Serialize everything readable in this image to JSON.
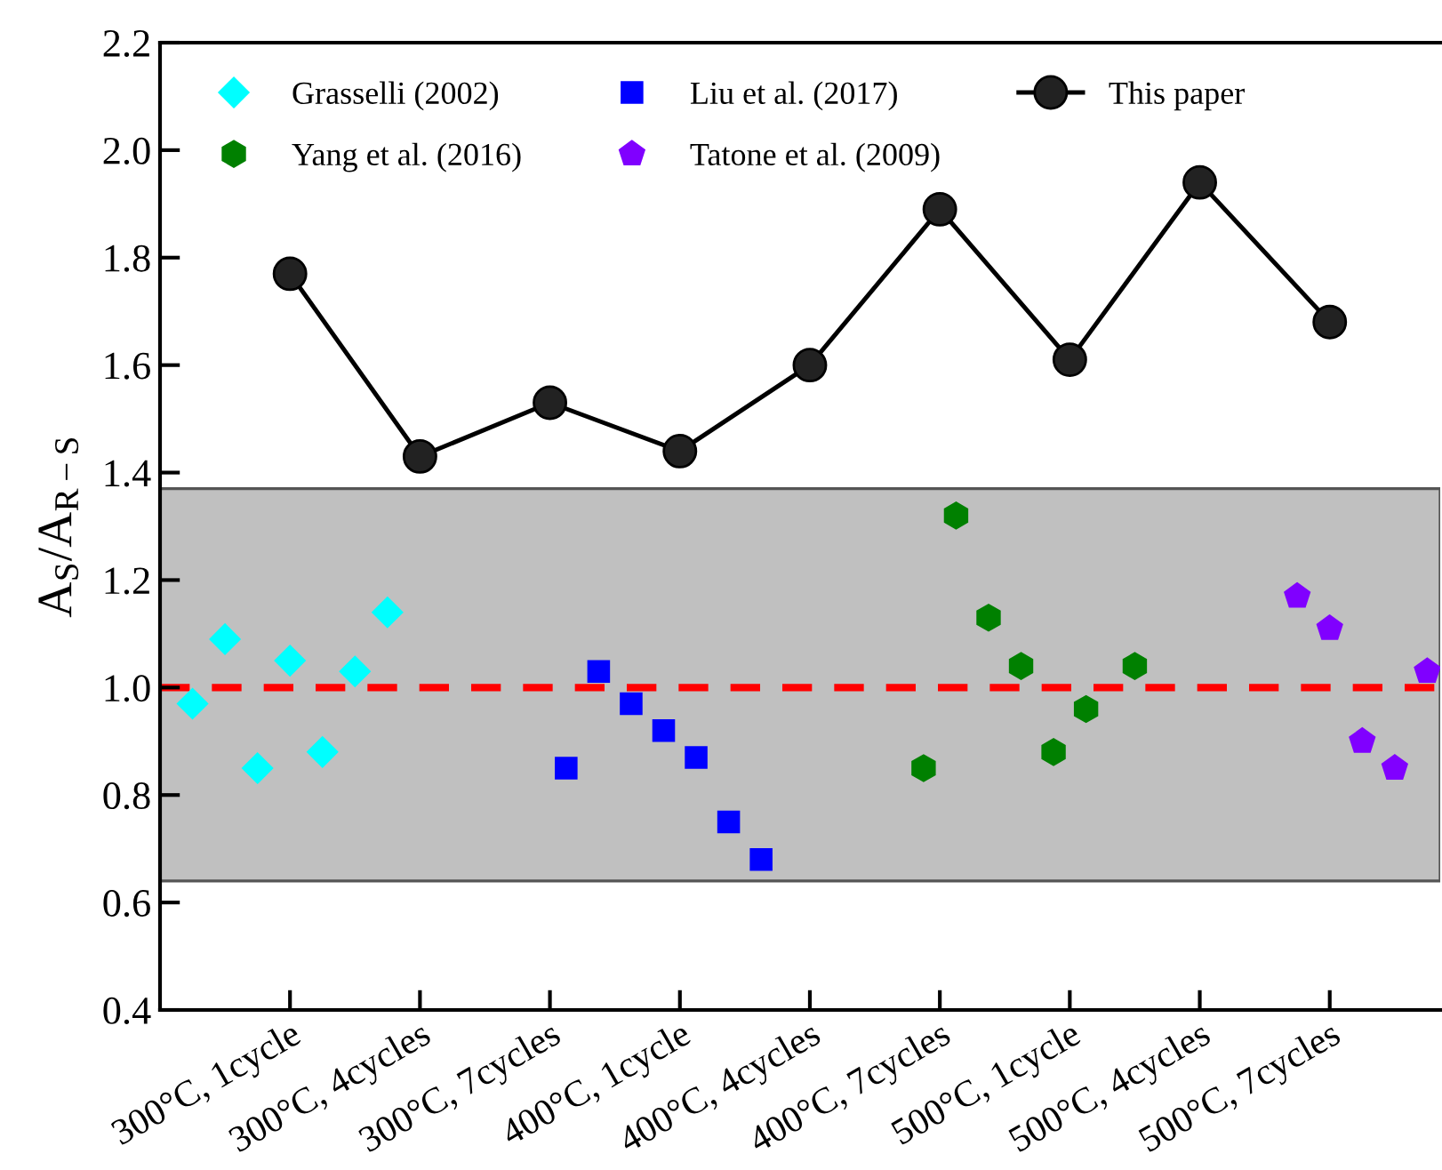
{
  "chart_data": {
    "type": "scatter",
    "ylabel": "A$_{S}$/A$_{R−S}$",
    "categories": [
      null,
      null,
      null,
      null,
      null,
      null,
      null,
      null,
      "300°C, 1cycle",
      null,
      null,
      null,
      null,
      null,
      null,
      null,
      "300°C, 4cycles",
      null,
      null,
      null,
      null,
      null,
      null,
      null,
      "300°C, 7cycles",
      null,
      null,
      null,
      null,
      null,
      null,
      null,
      "400°C, 1cycle",
      null,
      null,
      null,
      null,
      null,
      null,
      null,
      "400°C, 4cycles",
      null,
      null,
      null,
      null,
      null,
      null,
      null,
      "400°C, 7cycles",
      null,
      null,
      null,
      null,
      null,
      null,
      null,
      "500°C, 1cycle",
      null,
      null,
      null,
      null,
      null,
      null,
      null,
      "500°C, 4cycles",
      null,
      null,
      null,
      null,
      null,
      null,
      null,
      "500°C, 7cycles",
      null,
      null,
      null,
      null,
      null,
      null
    ],
    "ylim": [
      0.4,
      2.2
    ],
    "yticks": [
      0.4,
      0.6,
      0.8,
      {
        "value": 1.0,
        "label": "1.0"
      },
      1.2,
      1.4,
      1.6,
      1.8,
      {
        "value": 2.0,
        "label": "2.0"
      },
      2.2
    ],
    "grid": false,
    "legend": "top",
    "bands": [
      {
        "axis": "y",
        "from": 0.64,
        "to": 1.37,
        "color": "#c0c0c0"
      }
    ],
    "ref_lines": [
      {
        "axis": "y",
        "value": 1.0,
        "color": "#ff0000",
        "line_style": "dashed"
      }
    ],
    "series": [
      {
        "name": "Grasselli (2002)",
        "marker": "diamond",
        "color": "#00ffff",
        "values": [
          null,
          null,
          0.97,
          null,
          1.09,
          null,
          0.85,
          null,
          1.05,
          null,
          0.88,
          null,
          1.03,
          null,
          1.14,
          null,
          null,
          null,
          null,
          null,
          null,
          null,
          null,
          null,
          null,
          null,
          null,
          null,
          null,
          null,
          null,
          null,
          null,
          null,
          null,
          null,
          null,
          null,
          null,
          null,
          null,
          null,
          null,
          null,
          null,
          null,
          null,
          null,
          null,
          null,
          null,
          null,
          null,
          null,
          null,
          null,
          null,
          null,
          null,
          null,
          null,
          null,
          null,
          null,
          null,
          null,
          null,
          null,
          null,
          null,
          null,
          null,
          null,
          null,
          null,
          null,
          null,
          null,
          null
        ]
      },
      {
        "name": "Yang et al. (2016)",
        "color": "#008000",
        "values": [
          null,
          null,
          null,
          null,
          null,
          null,
          null,
          null,
          null,
          null,
          null,
          null,
          null,
          null,
          null,
          null,
          null,
          null,
          null,
          null,
          null,
          null,
          null,
          null,
          null,
          null,
          null,
          null,
          null,
          null,
          null,
          null,
          null,
          null,
          null,
          null,
          null,
          null,
          null,
          null,
          null,
          null,
          null,
          null,
          null,
          null,
          null,
          0.85,
          null,
          1.32,
          null,
          1.13,
          null,
          1.04,
          null,
          0.88,
          null,
          0.96,
          null,
          null,
          1.04,
          null,
          null,
          null,
          null,
          null,
          null,
          null,
          null,
          null,
          null,
          null,
          null,
          null,
          null,
          null,
          null,
          null,
          null
        ]
      },
      {
        "name": "Liu et al. (2017)",
        "marker": "square",
        "color": "#0000ff",
        "values": [
          null,
          null,
          null,
          null,
          null,
          null,
          null,
          null,
          null,
          null,
          null,
          null,
          null,
          null,
          null,
          null,
          null,
          null,
          null,
          null,
          null,
          null,
          null,
          null,
          null,
          0.85,
          null,
          1.03,
          null,
          0.97,
          null,
          0.92,
          null,
          0.87,
          null,
          0.75,
          null,
          0.68,
          null,
          null,
          null,
          null,
          null,
          null,
          null,
          null,
          null,
          null,
          null,
          null,
          null,
          null,
          null,
          null,
          null,
          null,
          null,
          null,
          null,
          null,
          null,
          null,
          null,
          null,
          null,
          null,
          null,
          null,
          null,
          null,
          null,
          null,
          null,
          null,
          null,
          null,
          null,
          null,
          null
        ]
      },
      {
        "name": "Tatone et al. (2009)",
        "color": "#8000ff",
        "values": [
          null,
          null,
          null,
          null,
          null,
          null,
          null,
          null,
          null,
          null,
          null,
          null,
          null,
          null,
          null,
          null,
          null,
          null,
          null,
          null,
          null,
          null,
          null,
          null,
          null,
          null,
          null,
          null,
          null,
          null,
          null,
          null,
          null,
          null,
          null,
          null,
          null,
          null,
          null,
          null,
          null,
          null,
          null,
          null,
          null,
          null,
          null,
          null,
          null,
          null,
          null,
          null,
          null,
          null,
          null,
          null,
          null,
          null,
          null,
          null,
          null,
          null,
          null,
          null,
          null,
          null,
          null,
          null,
          null,
          null,
          1.17,
          null,
          1.11,
          null,
          0.9,
          null,
          0.85,
          null,
          1.03
        ]
      },
      {
        "name": "This paper",
        "type": "line",
        "marker": "circle",
        "line_style": "solid",
        "color": "#000000",
        "values": [
          null,
          null,
          null,
          null,
          null,
          null,
          null,
          null,
          1.77,
          null,
          null,
          null,
          null,
          null,
          null,
          null,
          1.43,
          null,
          null,
          null,
          null,
          null,
          null,
          null,
          1.53,
          null,
          null,
          null,
          null,
          null,
          null,
          null,
          1.44,
          null,
          null,
          null,
          null,
          null,
          null,
          null,
          1.6,
          null,
          null,
          null,
          null,
          null,
          null,
          null,
          1.89,
          null,
          null,
          null,
          null,
          null,
          null,
          null,
          1.61,
          null,
          null,
          null,
          null,
          null,
          null,
          null,
          1.94,
          null,
          null,
          null,
          null,
          null,
          null,
          null,
          1.68,
          null,
          null,
          null,
          null,
          null,
          null
        ]
      }
    ]
  }
}
